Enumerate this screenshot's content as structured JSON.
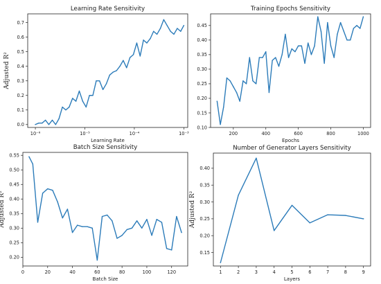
{
  "colors": {
    "series": "#2b7bb9",
    "axes": "#222222",
    "background": "#ffffff"
  },
  "chart_data": [
    {
      "id": "lr",
      "type": "line",
      "title": "Learning Rate Sensitivity",
      "xlabel": "Learning Rate",
      "ylabel": "Adjusted R²",
      "xscale": "log",
      "xlim": [
        7e-07,
        0.0012
      ],
      "ylim": [
        -0.02,
        0.76
      ],
      "xticks": [
        1e-06,
        1e-05,
        0.0001,
        0.001
      ],
      "xtick_labels": [
        "10⁻⁶",
        "10⁻⁵",
        "10⁻⁴",
        "10⁻³"
      ],
      "yticks": [
        0.0,
        0.1,
        0.2,
        0.3,
        0.4,
        0.5,
        0.6,
        0.7
      ],
      "ytick_labels": [
        "0.0",
        "0.1",
        "0.2",
        "0.3",
        "0.4",
        "0.5",
        "0.6",
        "0.7"
      ],
      "grid": false,
      "x": [
        1e-06,
        1.17e-06,
        1.37e-06,
        1.6e-06,
        1.87e-06,
        2.2e-06,
        2.57e-06,
        3e-06,
        3.52e-06,
        4.12e-06,
        4.82e-06,
        5.64e-06,
        6.6e-06,
        7.72e-06,
        9.04e-06,
        1.06e-05,
        1.24e-05,
        1.45e-05,
        1.7e-05,
        1.98e-05,
        2.32e-05,
        2.72e-05,
        3.18e-05,
        3.72e-05,
        4.36e-05,
        5.1e-05,
        5.97e-05,
        6.98e-05,
        8.17e-05,
        9.56e-05,
        0.000112,
        0.000131,
        0.000153,
        0.000179,
        0.00021,
        0.000245,
        0.000287,
        0.000336,
        0.000393,
        0.00046,
        0.000539,
        0.00063,
        0.000738,
        0.000863,
        0.001
      ],
      "values": [
        0.0,
        0.01,
        0.01,
        0.03,
        0.0,
        0.03,
        0.0,
        0.04,
        0.12,
        0.1,
        0.12,
        0.18,
        0.16,
        0.23,
        0.16,
        0.12,
        0.2,
        0.2,
        0.3,
        0.3,
        0.24,
        0.28,
        0.34,
        0.36,
        0.37,
        0.4,
        0.44,
        0.39,
        0.46,
        0.48,
        0.56,
        0.47,
        0.58,
        0.56,
        0.59,
        0.64,
        0.62,
        0.66,
        0.72,
        0.68,
        0.64,
        0.62,
        0.66,
        0.64,
        0.68
      ]
    },
    {
      "id": "epochs",
      "type": "line",
      "title": "Training Epochs Sensitivity",
      "xlabel": "Epochs",
      "ylabel": "",
      "xscale": "linear",
      "xlim": [
        60,
        1045
      ],
      "ylim": [
        0.1,
        0.49
      ],
      "xticks": [
        200,
        400,
        600,
        800,
        1000
      ],
      "xtick_labels": [
        "200",
        "400",
        "600",
        "800",
        "1000"
      ],
      "yticks": [
        0.1,
        0.15,
        0.2,
        0.25,
        0.3,
        0.35,
        0.4,
        0.45
      ],
      "ytick_labels": [
        "0.10",
        "0.15",
        "0.20",
        "0.25",
        "0.30",
        "0.35",
        "0.40",
        "0.45"
      ],
      "grid": false,
      "x": [
        100,
        120,
        140,
        160,
        180,
        200,
        220,
        240,
        260,
        280,
        300,
        320,
        340,
        360,
        380,
        400,
        420,
        440,
        460,
        480,
        500,
        520,
        540,
        560,
        580,
        600,
        620,
        640,
        660,
        680,
        700,
        720,
        740,
        760,
        780,
        800,
        820,
        840,
        860,
        880,
        900,
        920,
        940,
        960,
        980,
        1000
      ],
      "values": [
        0.19,
        0.11,
        0.17,
        0.27,
        0.26,
        0.24,
        0.22,
        0.19,
        0.26,
        0.25,
        0.34,
        0.26,
        0.25,
        0.34,
        0.34,
        0.36,
        0.22,
        0.33,
        0.34,
        0.31,
        0.35,
        0.42,
        0.34,
        0.37,
        0.36,
        0.38,
        0.38,
        0.32,
        0.39,
        0.35,
        0.38,
        0.48,
        0.43,
        0.32,
        0.46,
        0.38,
        0.34,
        0.42,
        0.46,
        0.43,
        0.4,
        0.4,
        0.44,
        0.45,
        0.44,
        0.48
      ]
    },
    {
      "id": "batch",
      "type": "line",
      "title": "Batch Size Sensitivity",
      "xlabel": "Batch Size",
      "ylabel": "Adjusted R²",
      "xscale": "linear",
      "xlim": [
        0,
        133
      ],
      "ylim": [
        0.17,
        0.56
      ],
      "xticks": [
        0,
        20,
        40,
        60,
        80,
        100,
        120
      ],
      "xtick_labels": [
        "0",
        "20",
        "40",
        "60",
        "80",
        "100",
        "120"
      ],
      "yticks": [
        0.2,
        0.25,
        0.3,
        0.35,
        0.4,
        0.45,
        0.5,
        0.55
      ],
      "ytick_labels": [
        "0.20",
        "0.25",
        "0.30",
        "0.35",
        "0.40",
        "0.45",
        "0.50",
        "0.55"
      ],
      "grid": false,
      "x": [
        5,
        8,
        12,
        16,
        20,
        24,
        28,
        32,
        36,
        40,
        44,
        48,
        52,
        56,
        60,
        64,
        68,
        72,
        76,
        80,
        84,
        88,
        92,
        96,
        100,
        104,
        108,
        112,
        116,
        120,
        124,
        128
      ],
      "values": [
        0.545,
        0.52,
        0.32,
        0.42,
        0.435,
        0.43,
        0.39,
        0.335,
        0.365,
        0.285,
        0.31,
        0.305,
        0.305,
        0.3,
        0.19,
        0.34,
        0.345,
        0.325,
        0.265,
        0.275,
        0.295,
        0.3,
        0.325,
        0.3,
        0.33,
        0.275,
        0.33,
        0.32,
        0.23,
        0.225,
        0.34,
        0.285
      ]
    },
    {
      "id": "layers",
      "type": "line",
      "title": "Number of Generator Layers Sensitivity",
      "xlabel": "Layers",
      "ylabel": "Adjusted R²",
      "xscale": "linear",
      "xlim": [
        0.6,
        9.4
      ],
      "ylim": [
        0.11,
        0.445
      ],
      "xticks": [
        1,
        2,
        3,
        4,
        5,
        6,
        7,
        8,
        9
      ],
      "xtick_labels": [
        "1",
        "2",
        "3",
        "4",
        "5",
        "6",
        "7",
        "8",
        "9"
      ],
      "yticks": [
        0.15,
        0.2,
        0.25,
        0.3,
        0.35,
        0.4
      ],
      "ytick_labels": [
        "0.15",
        "0.20",
        "0.25",
        "0.30",
        "0.35",
        "0.40"
      ],
      "grid": false,
      "x": [
        1,
        2,
        3,
        4,
        5,
        6,
        7,
        8,
        9
      ],
      "values": [
        0.12,
        0.32,
        0.43,
        0.215,
        0.29,
        0.238,
        0.262,
        0.26,
        0.25
      ]
    }
  ]
}
